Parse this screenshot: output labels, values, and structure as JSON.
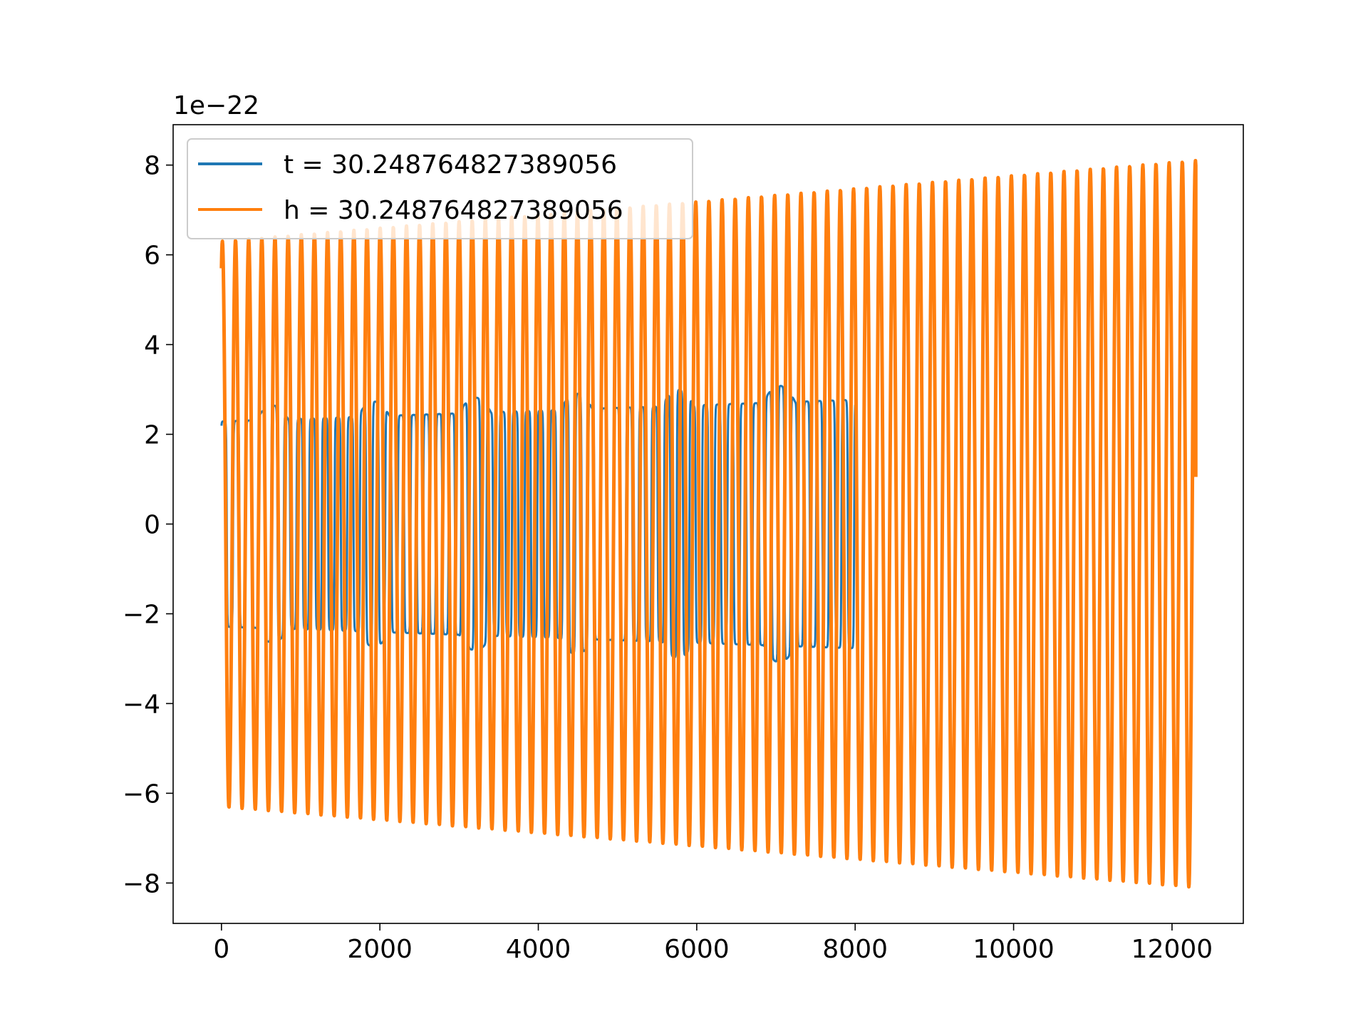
{
  "chart_data": {
    "type": "line",
    "title": "",
    "xlabel": "",
    "ylabel": "",
    "y_offset_label": "1e−22",
    "xlim": [
      -610,
      12900
    ],
    "ylim": [
      -8.9,
      8.9
    ],
    "x_ticks": [
      0,
      2000,
      4000,
      6000,
      8000,
      10000,
      12000
    ],
    "x_tick_labels": [
      "0",
      "2000",
      "4000",
      "6000",
      "8000",
      "10000",
      "12000"
    ],
    "y_ticks": [
      -8,
      -6,
      -4,
      -2,
      0,
      2,
      4,
      6,
      8
    ],
    "y_tick_labels": [
      "−8",
      "−6",
      "−4",
      "−2",
      "0",
      "2",
      "4",
      "6",
      "8"
    ],
    "grid": false,
    "legend_position": "upper-left",
    "series": [
      {
        "name": "t = 30.248764827389056",
        "color": "#1f77b4",
        "x_start": 0,
        "x_end": 8000,
        "amplitude_start": 2.6,
        "amplitude_end": 3.15,
        "period": 160,
        "amplitude_modulation": "beating, groups of ~4 cycles"
      },
      {
        "name": "h = 30.248764827389056",
        "color": "#ff7f0e",
        "x_start": 0,
        "x_end": 12300,
        "amplitude_start": 6.3,
        "amplitude_end": 8.1,
        "period": 166,
        "initial_value": 5.7,
        "final_value": 1.05
      }
    ]
  }
}
